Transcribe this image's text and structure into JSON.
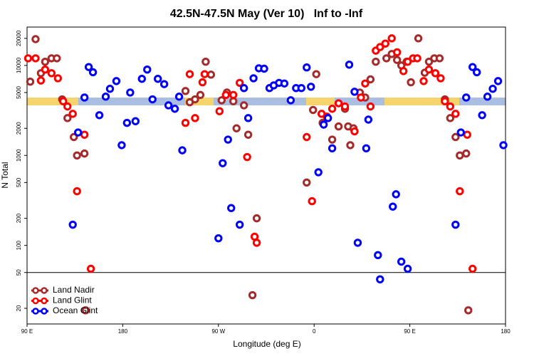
{
  "chart_data": {
    "type": "scatter",
    "title": "42.5N-47.5N May (Ver 10)   Inf to -Inf",
    "x_label": "Longitude (deg E)",
    "y_label": "N Total",
    "xlim": [
      90,
      540
    ],
    "xticks": [
      {
        "value": 90,
        "label": "90 E"
      },
      {
        "value": 180,
        "label": "180"
      },
      {
        "value": 270,
        "label": "90 W"
      },
      {
        "value": 360,
        "label": "0"
      },
      {
        "value": 450,
        "label": "90 E"
      },
      {
        "value": 540,
        "label": "180"
      }
    ],
    "ylim": [
      13.4,
      26700
    ],
    "yticks": [
      20,
      50,
      100,
      200,
      500,
      1000,
      2000,
      5000,
      10000,
      20000
    ],
    "log_y": true,
    "hline": 50,
    "legend": "lower left",
    "series": [
      {
        "name": "Land Nadir",
        "color": "#a52a2a",
        "x": [
          98,
          93,
          103,
          107,
          113,
          118,
          123,
          128,
          134,
          137,
          144,
          239,
          243,
          248,
          253,
          258,
          263,
          273,
          284,
          278,
          287,
          294,
          298,
          306,
          302,
          353,
          362,
          359,
          368,
          373,
          377,
          383,
          392,
          389,
          394,
          397,
          403,
          408,
          413,
          418,
          428,
          433,
          438,
          442,
          447,
          451,
          458,
          464,
          468,
          473,
          478,
          483,
          488,
          493,
          497,
          503,
          505,
          145
        ],
        "values": [
          19600,
          6600,
          8200,
          11000,
          12000,
          12000,
          4200,
          2600,
          1600,
          1000,
          1050,
          5200,
          3900,
          4200,
          4700,
          11000,
          7900,
          4100,
          4000,
          5000,
          2000,
          3600,
          1700,
          200,
          28,
          500,
          8000,
          3200,
          2300,
          2600,
          1500,
          2100,
          2100,
          3300,
          1300,
          2000,
          5000,
          4400,
          7000,
          11000,
          12000,
          13400,
          11500,
          10000,
          11000,
          6500,
          20000,
          8300,
          11000,
          12000,
          12000,
          4200,
          2600,
          1600,
          1000,
          1050,
          19,
          19
        ]
      },
      {
        "name": "Land Glint",
        "color": "#ff0000",
        "x": [
          91,
          98,
          103,
          107,
          113,
          119,
          124,
          128,
          133,
          137,
          144,
          150,
          239,
          243,
          248,
          255,
          257,
          271,
          277,
          284,
          290,
          297,
          306,
          304,
          353,
          358,
          367,
          372,
          377,
          383,
          389,
          398,
          404,
          408,
          413,
          418,
          422,
          427,
          433,
          438,
          444,
          448,
          453,
          457,
          463,
          468,
          474,
          479,
          483,
          488,
          493,
          497,
          504,
          509
        ],
        "values": [
          12000,
          12000,
          6800,
          9000,
          8200,
          7200,
          4000,
          3500,
          2900,
          400,
          1700,
          55,
          2300,
          8000,
          2600,
          6500,
          8000,
          3100,
          4700,
          4700,
          6400,
          960,
          107,
          125,
          1600,
          310,
          2900,
          2700,
          3300,
          3800,
          3500,
          1850,
          4400,
          6300,
          3500,
          14600,
          16000,
          17500,
          20000,
          14000,
          8650,
          11000,
          12000,
          12000,
          6700,
          9000,
          8200,
          7200,
          4000,
          3500,
          2900,
          400,
          1700,
          55
        ]
      },
      {
        "name": "Ocean Glint",
        "color": "#0000ff",
        "x": [
          133,
          138,
          144,
          148,
          152,
          158,
          164,
          168,
          174,
          179,
          184,
          187,
          192,
          198,
          203,
          208,
          213,
          219,
          223,
          229,
          233,
          236,
          270,
          274,
          279,
          282,
          290,
          294,
          298,
          303,
          308,
          313,
          318,
          322,
          327,
          332,
          338,
          343,
          348,
          353,
          357,
          364,
          369,
          373,
          377,
          393,
          398,
          401,
          409,
          411,
          420,
          422,
          434,
          437,
          442,
          448,
          493,
          498,
          503,
          509,
          513,
          518,
          523,
          528,
          533,
          538
        ],
        "values": [
          170,
          1800,
          4400,
          9600,
          8400,
          2800,
          4500,
          5500,
          6700,
          1300,
          2300,
          5000,
          2400,
          7100,
          9000,
          4200,
          7100,
          6200,
          3600,
          3300,
          4500,
          1140,
          120,
          820,
          1500,
          260,
          170,
          5600,
          2600,
          7200,
          9300,
          9200,
          5600,
          6000,
          6400,
          6300,
          4100,
          5600,
          5600,
          9500,
          5800,
          650,
          2200,
          2600,
          1200,
          10200,
          5100,
          107,
          1200,
          2500,
          78,
          42,
          270,
          370,
          66,
          55,
          170,
          1800,
          4400,
          9600,
          8400,
          2800,
          4500,
          5500,
          6700,
          1300
        ]
      }
    ]
  }
}
